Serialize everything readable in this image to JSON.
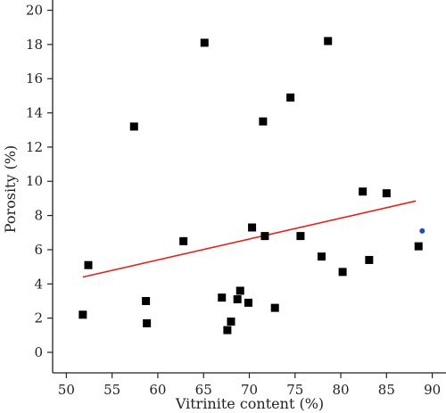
{
  "chart_data": {
    "type": "scatter",
    "xlabel": "Vitrinite content (%)",
    "ylabel": "Porosity (%)",
    "xlim": [
      48.5,
      91.5
    ],
    "ylim": [
      -1.2,
      20.6
    ],
    "xticks": [
      50,
      55,
      60,
      65,
      70,
      75,
      80,
      85,
      90
    ],
    "yticks": [
      0,
      2,
      4,
      6,
      8,
      10,
      12,
      14,
      16,
      18,
      20
    ],
    "grid": false,
    "series": [
      {
        "marker": "square",
        "color": "#000000",
        "points": [
          [
            51.8,
            2.2
          ],
          [
            52.4,
            5.1
          ],
          [
            57.4,
            13.2
          ],
          [
            58.7,
            3.0
          ],
          [
            58.8,
            1.7
          ],
          [
            62.8,
            6.5
          ],
          [
            65.1,
            18.1
          ],
          [
            67.0,
            3.2
          ],
          [
            67.6,
            1.3
          ],
          [
            68.0,
            1.8
          ],
          [
            68.7,
            3.1
          ],
          [
            69.0,
            3.6
          ],
          [
            69.9,
            2.9
          ],
          [
            70.3,
            7.3
          ],
          [
            71.5,
            13.5
          ],
          [
            71.7,
            6.8
          ],
          [
            72.8,
            2.6
          ],
          [
            74.5,
            14.9
          ],
          [
            75.6,
            6.8
          ],
          [
            77.9,
            5.6
          ],
          [
            78.6,
            18.2
          ],
          [
            80.2,
            4.7
          ],
          [
            82.4,
            9.4
          ],
          [
            83.1,
            5.4
          ],
          [
            85.0,
            9.3
          ],
          [
            88.5,
            6.2
          ]
        ]
      },
      {
        "marker": "circle",
        "color": "#1f4fa8",
        "points": [
          [
            88.9,
            7.1
          ]
        ]
      }
    ],
    "trendline": {
      "color": "#e0241b",
      "x": [
        51.8,
        88.2
      ],
      "y": [
        4.4,
        8.85
      ]
    }
  }
}
